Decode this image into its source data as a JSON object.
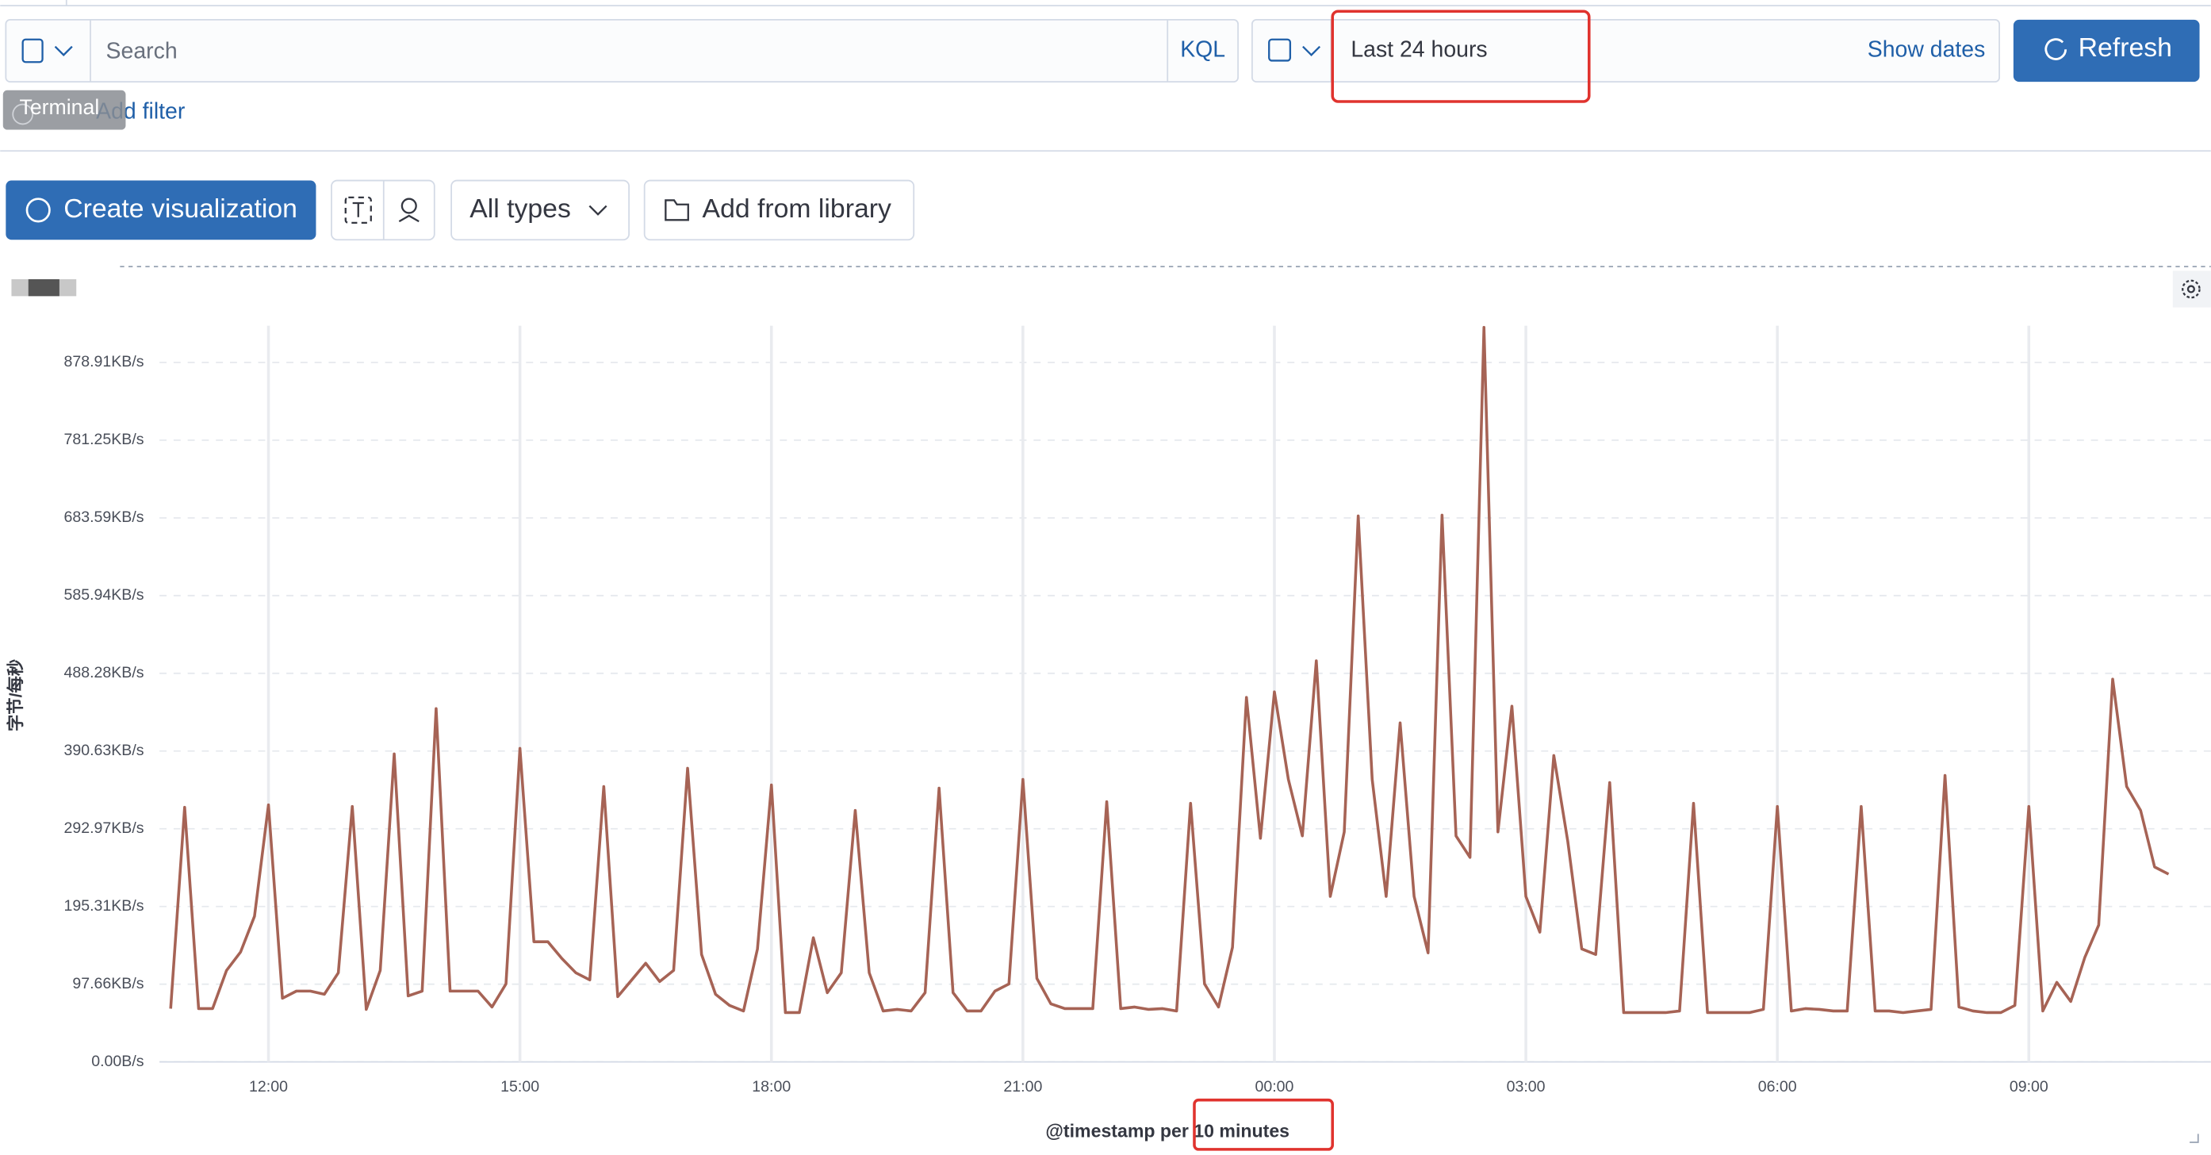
{
  "query_bar": {
    "placeholder": "Search",
    "language": "KQL",
    "date_range": "Last 24 hours",
    "show_dates": "Show dates",
    "refresh": "Refresh",
    "add_filter": "Add filter",
    "tooltip": "Terminal"
  },
  "toolbar": {
    "create": "Create visualization",
    "types": "All types",
    "library": "Add from library"
  },
  "chart_data": {
    "type": "line",
    "color": "#a66355",
    "grid": true,
    "x_label": "@timestamp per 10 minutes",
    "y_label": "字节/每秒",
    "xlim": [
      642,
      2082
    ],
    "ylim": [
      0,
      925
    ],
    "xticks": [
      {
        "value": 720,
        "label": "12:00"
      },
      {
        "value": 900,
        "label": "15:00"
      },
      {
        "value": 1080,
        "label": "18:00"
      },
      {
        "value": 1260,
        "label": "21:00"
      },
      {
        "value": 1440,
        "label": "00:00"
      },
      {
        "value": 1620,
        "label": "03:00"
      },
      {
        "value": 1800,
        "label": "06:00"
      },
      {
        "value": 1980,
        "label": "09:00"
      }
    ],
    "yticks": [
      {
        "value": 0,
        "label": "0.00B/s"
      },
      {
        "value": 97.66,
        "label": "97.66KB/s"
      },
      {
        "value": 195.31,
        "label": "195.31KB/s"
      },
      {
        "value": 292.97,
        "label": "292.97KB/s"
      },
      {
        "value": 390.63,
        "label": "390.63KB/s"
      },
      {
        "value": 488.28,
        "label": "488.28KB/s"
      },
      {
        "value": 585.94,
        "label": "585.94KB/s"
      },
      {
        "value": 683.59,
        "label": "683.59KB/s"
      },
      {
        "value": 781.25,
        "label": "781.25KB/s"
      },
      {
        "value": 878.91,
        "label": "878.91KB/s"
      }
    ],
    "x": [
      650,
      660,
      670,
      680,
      690,
      700,
      710,
      720,
      730,
      740,
      750,
      760,
      770,
      780,
      790,
      800,
      810,
      820,
      830,
      840,
      850,
      860,
      870,
      880,
      890,
      900,
      910,
      920,
      930,
      940,
      950,
      960,
      970,
      980,
      990,
      1000,
      1010,
      1020,
      1030,
      1040,
      1050,
      1060,
      1070,
      1080,
      1090,
      1100,
      1110,
      1120,
      1130,
      1140,
      1150,
      1160,
      1170,
      1180,
      1190,
      1200,
      1210,
      1220,
      1230,
      1240,
      1250,
      1260,
      1270,
      1280,
      1290,
      1300,
      1310,
      1320,
      1330,
      1340,
      1350,
      1360,
      1370,
      1380,
      1390,
      1400,
      1410,
      1420,
      1430,
      1440,
      1450,
      1460,
      1470,
      1480,
      1490,
      1500,
      1510,
      1520,
      1530,
      1540,
      1550,
      1560,
      1570,
      1580,
      1590,
      1600,
      1610,
      1620,
      1630,
      1640,
      1650,
      1660,
      1670,
      1680,
      1690,
      1700,
      1710,
      1720,
      1730,
      1740,
      1750,
      1760,
      1770,
      1780,
      1790,
      1800,
      1810,
      1820,
      1830,
      1840,
      1850,
      1860,
      1870,
      1880,
      1890,
      1900,
      1910,
      1920,
      1930,
      1940,
      1950,
      1960,
      1970,
      1980,
      1990,
      2000,
      2010,
      2020,
      2030,
      2040,
      2050,
      2060,
      2070,
      2080
    ],
    "values": [
      67,
      320,
      67,
      67,
      115,
      138,
      183,
      323,
      80,
      89,
      89,
      85,
      112,
      321,
      66,
      115,
      387,
      83,
      89,
      444,
      89,
      89,
      89,
      69,
      98,
      394,
      151,
      151,
      130,
      112,
      103,
      346,
      82,
      103,
      124,
      101,
      115,
      369,
      135,
      85,
      71,
      64,
      142,
      348,
      62,
      62,
      156,
      87,
      112,
      316,
      112,
      64,
      66,
      64,
      87,
      344,
      87,
      64,
      64,
      89,
      98,
      355,
      105,
      73,
      67,
      67,
      67,
      327,
      67,
      69,
      66,
      67,
      64,
      325,
      98,
      69,
      144,
      458,
      281,
      465,
      355,
      284,
      504,
      208,
      289,
      686,
      355,
      208,
      426,
      208,
      137,
      687,
      284,
      257,
      923,
      289,
      447,
      208,
      163,
      385,
      277,
      142,
      135,
      351,
      62,
      62,
      62,
      62,
      64,
      325,
      62,
      62,
      62,
      62,
      66,
      321,
      64,
      67,
      66,
      64,
      64,
      321,
      64,
      64,
      62,
      64,
      66,
      360,
      69,
      64,
      62,
      62,
      71,
      321,
      64,
      100,
      76,
      131,
      172,
      481,
      346,
      316,
      245,
      236
    ]
  }
}
